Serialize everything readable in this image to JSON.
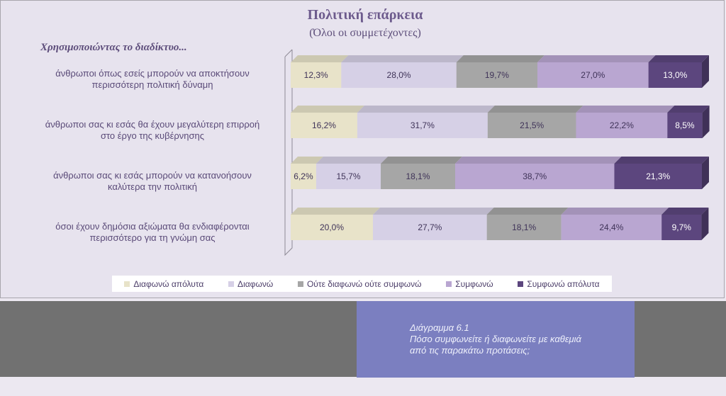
{
  "chart_data": {
    "type": "bar",
    "orientation": "horizontal",
    "stacked": true,
    "title": "Πολιτική επάρκεια",
    "subtitle": "(Όλοι οι συμμετέχοντες)",
    "category_heading": "Χρησιμοποιώντας το διαδίκτυο...",
    "categories": [
      [
        "άνθρωποι όπως εσείς μπορούν να αποκτήσουν",
        "περισσότερη πολιτική δύναμη"
      ],
      [
        "άνθρωποι σας κι εσάς θα έχουν μεγαλύτερη  επιρροή",
        "στο έργο της κυβέρνησης"
      ],
      [
        "άνθρωποι σας κι εσάς μπορούν να κατανοήσουν",
        "καλύτερα την πολιτική"
      ],
      [
        "όσοι έχουν δημόσια αξιώματα θα ενδιαφέρονται",
        "περισσότερο για τη γνώμη σας"
      ]
    ],
    "series": [
      {
        "name": "Διαφωνώ απόλυτα",
        "color": "#e8e3c9",
        "values": [
          12.3,
          16.2,
          6.2,
          20.0
        ],
        "labels": [
          "12,3%",
          "16,2%",
          "6,2%",
          "20,0%"
        ]
      },
      {
        "name": "Διαφωνώ",
        "color": "#d6d0e6",
        "values": [
          28.0,
          31.7,
          15.7,
          27.7
        ],
        "labels": [
          "28,0%",
          "31,7%",
          "15,7%",
          "27,7%"
        ]
      },
      {
        "name": "Ούτε διαφωνώ ούτε συμφωνώ",
        "color": "#a6a6a6",
        "values": [
          19.7,
          21.5,
          18.1,
          18.1
        ],
        "labels": [
          "19,7%",
          "21,5%",
          "18,1%",
          "18,1%"
        ]
      },
      {
        "name": "Συμφωνώ",
        "color": "#b9a6d1",
        "values": [
          27.0,
          22.2,
          38.7,
          24.4
        ],
        "labels": [
          "27,0%",
          "22,2%",
          "38,7%",
          "24,4%"
        ]
      },
      {
        "name": "Συμφωνώ απόλυτα",
        "color": "#5c467e",
        "values": [
          13.0,
          8.5,
          21.3,
          9.7
        ],
        "labels": [
          "13,0%",
          "8,5%",
          "21,3%",
          "9,7%"
        ]
      }
    ],
    "xlim": [
      0,
      100
    ],
    "legend_position": "bottom"
  },
  "caption": {
    "line1": "Διάγραμμα 6.1",
    "line2": "Πόσο συμφωνείτε ή διαφωνείτε με καθεμιά",
    "line3": "από τις παρακάτω προτάσεις;"
  }
}
